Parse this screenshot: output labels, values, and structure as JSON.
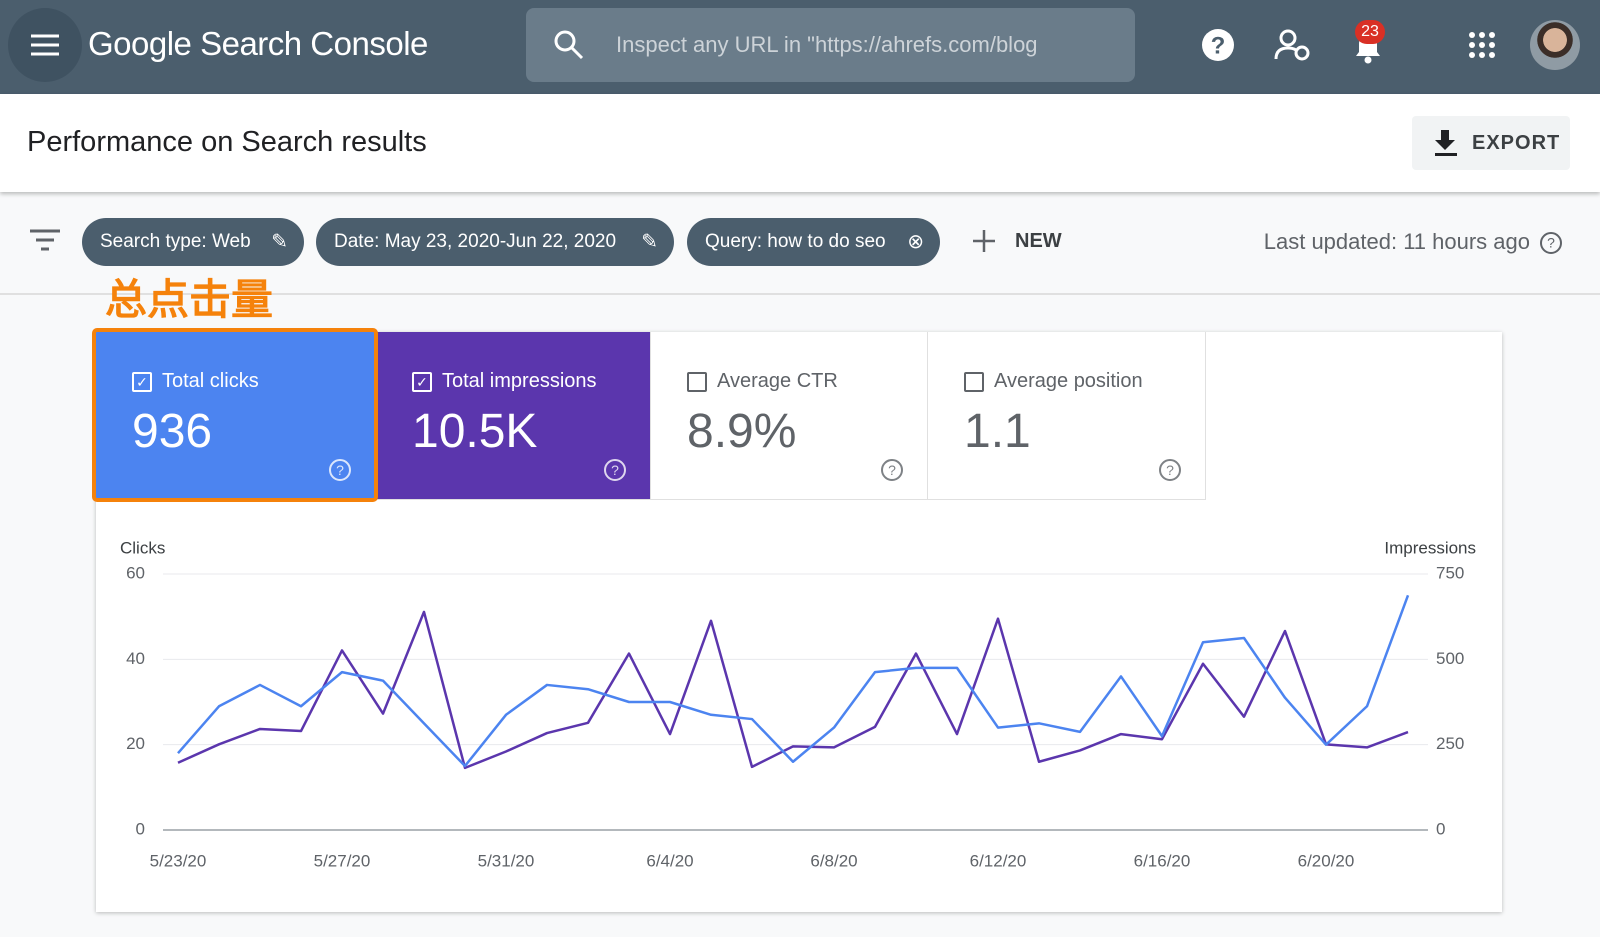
{
  "header": {
    "title": "Google Search Console",
    "search_placeholder": "Inspect any URL in \"https://ahrefs.com/blog",
    "notifications": "23"
  },
  "page": {
    "title": "Performance on Search results",
    "export": "EXPORT"
  },
  "filters": [
    "Search type: Web",
    "Date: May 23, 2020-Jun 22, 2020",
    "Query: how to do seo"
  ],
  "new_button": "NEW",
  "last_updated": "Last updated: 11 hours ago",
  "annotation": "总点击量",
  "metrics": [
    {
      "label": "Total clicks",
      "value": "936"
    },
    {
      "label": "Total impressions",
      "value": "10.5K"
    },
    {
      "label": "Average CTR",
      "value": "8.9%"
    },
    {
      "label": "Average position",
      "value": "1.1"
    }
  ],
  "chart_data": {
    "type": "line",
    "categories": [
      "5/23/20",
      null,
      null,
      null,
      "5/27/20",
      null,
      null,
      null,
      "5/31/20",
      null,
      null,
      null,
      "6/4/20",
      null,
      null,
      null,
      "6/8/20",
      null,
      null,
      null,
      "6/12/20",
      null,
      null,
      null,
      "6/16/20",
      null,
      null,
      null,
      "6/20/20",
      null,
      null
    ],
    "series": [
      {
        "name": "Clicks",
        "color": "#4c84f0",
        "axis": "y",
        "values": [
          18,
          29,
          34,
          29,
          37,
          35,
          25,
          15,
          27,
          34,
          33,
          30,
          30,
          27,
          26,
          16,
          24,
          37,
          38,
          38,
          24,
          25,
          23,
          36,
          22,
          44,
          45,
          31,
          20,
          29,
          55
        ]
      },
      {
        "name": "Impressions",
        "color": "#5b36ad",
        "axis": "y2",
        "values": [
          197,
          251,
          296,
          290,
          526,
          341,
          639,
          182,
          230,
          284,
          314,
          517,
          281,
          613,
          185,
          245,
          242,
          302,
          517,
          281,
          619,
          200,
          233,
          281,
          266,
          487,
          332,
          583,
          251,
          242,
          287
        ]
      }
    ],
    "ylim": [
      0,
      60
    ],
    "yticks": [
      0,
      20,
      40,
      60
    ],
    "y2lim": [
      0,
      750
    ],
    "y2ticks": [
      0,
      250,
      500,
      750
    ],
    "grid": true
  }
}
